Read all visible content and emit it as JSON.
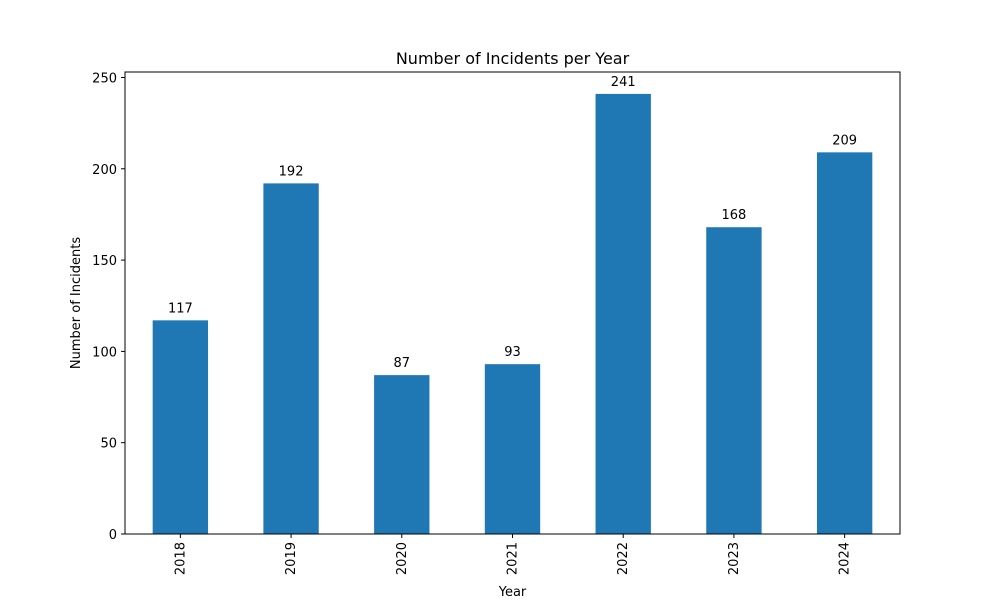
{
  "chart_data": {
    "type": "bar",
    "title": "Number of Incidents per Year",
    "xlabel": "Year",
    "ylabel": "Number of Incidents",
    "categories": [
      "2018",
      "2019",
      "2020",
      "2021",
      "2022",
      "2023",
      "2024"
    ],
    "values": [
      117,
      192,
      87,
      93,
      241,
      168,
      209
    ],
    "data_labels": [
      "117",
      "192",
      "87",
      "93",
      "241",
      "168",
      "209"
    ],
    "ylim": [
      0,
      253
    ],
    "yticks": [
      0,
      50,
      100,
      150,
      200,
      250
    ],
    "ytick_labels": [
      "0",
      "50",
      "100",
      "150",
      "200",
      "250"
    ],
    "x_tick_rotation": "vertical",
    "grid": false,
    "legend": "none",
    "bar_color": "#1f77b4"
  }
}
